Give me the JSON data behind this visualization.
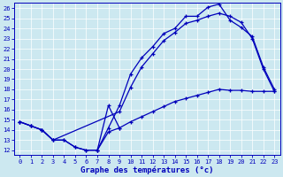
{
  "xlabel": "Graphe des températures (°c)",
  "bg_color": "#cce8f0",
  "line_color": "#0000bb",
  "xlim": [
    -0.5,
    23.5
  ],
  "ylim": [
    11.5,
    26.5
  ],
  "xticks": [
    0,
    1,
    2,
    3,
    4,
    5,
    6,
    7,
    8,
    9,
    10,
    11,
    12,
    13,
    14,
    15,
    16,
    17,
    18,
    19,
    20,
    21,
    22,
    23
  ],
  "yticks": [
    12,
    13,
    14,
    15,
    16,
    17,
    18,
    19,
    20,
    21,
    22,
    23,
    24,
    25,
    26
  ],
  "line1_x": [
    0,
    1,
    2,
    3,
    4,
    5,
    6,
    7,
    8,
    9,
    10,
    11,
    12,
    13,
    14,
    15,
    16,
    17,
    18,
    19,
    20,
    21,
    22,
    23
  ],
  "line1_y": [
    14.8,
    14.4,
    14.0,
    13.0,
    13.0,
    12.3,
    12.0,
    12.0,
    14.2,
    16.4,
    19.5,
    21.1,
    22.2,
    23.5,
    24.0,
    25.2,
    25.2,
    26.1,
    26.4,
    24.8,
    24.1,
    23.2,
    20.2,
    18.0
  ],
  "line2_x": [
    0,
    1,
    2,
    3,
    9,
    10,
    11,
    12,
    13,
    14,
    15,
    16,
    17,
    18,
    19,
    20,
    21,
    22,
    23
  ],
  "line2_y": [
    14.8,
    14.4,
    14.0,
    13.0,
    15.8,
    18.2,
    20.2,
    21.5,
    22.8,
    23.6,
    24.5,
    24.8,
    25.2,
    25.5,
    25.2,
    24.6,
    23.0,
    20.0,
    17.8
  ],
  "line3_x": [
    0,
    1,
    2,
    3,
    4,
    5,
    6,
    7,
    8,
    9,
    10,
    11,
    12,
    13,
    14,
    15,
    16,
    17,
    18,
    19,
    20,
    21,
    22,
    23
  ],
  "line3_y": [
    14.8,
    14.4,
    14.0,
    13.0,
    13.0,
    12.3,
    12.0,
    12.0,
    13.8,
    14.2,
    14.8,
    15.3,
    15.8,
    16.3,
    16.8,
    17.1,
    17.4,
    17.7,
    18.0,
    17.9,
    17.9,
    17.8,
    17.8,
    17.8
  ],
  "line4_x": [
    7,
    8,
    9
  ],
  "line4_y": [
    12.0,
    16.4,
    14.2
  ]
}
